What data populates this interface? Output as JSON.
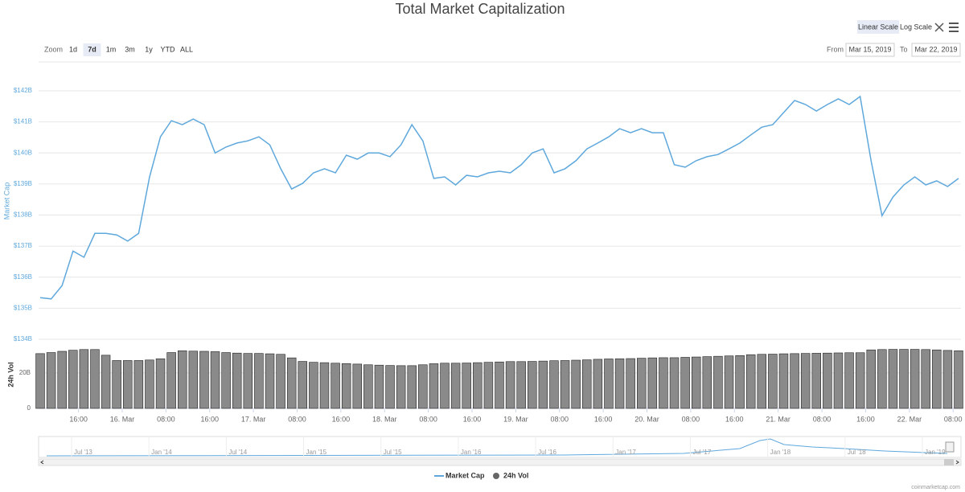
{
  "chart_data": {
    "type": "line",
    "title": "Total Market Capitalization",
    "scale_buttons": [
      "Linear Scale",
      "Log Scale"
    ],
    "zoom_label": "Zoom",
    "zoom_buttons": [
      "1d",
      "7d",
      "1m",
      "3m",
      "1y",
      "YTD",
      "ALL"
    ],
    "from_label": "From",
    "from_date": "Mar 15, 2019",
    "to_label": "To",
    "to_date": "Mar 22, 2019",
    "y_label": "Market Cap",
    "y2_label": "24h Vol",
    "credit": "coinmarketcap.com",
    "x": [
      9,
      11,
      13,
      15,
      17,
      19,
      21,
      23,
      25,
      27,
      29,
      31,
      33,
      35,
      37,
      39,
      41,
      43,
      45,
      47,
      49,
      51,
      53,
      55,
      57,
      59,
      61,
      63,
      65,
      67,
      69,
      71,
      73,
      75,
      77,
      79,
      81,
      83,
      85,
      87,
      89,
      91,
      93,
      95,
      97,
      99,
      101,
      103,
      105,
      107,
      109,
      111,
      113,
      115,
      117,
      119,
      121,
      123,
      125,
      127,
      129,
      131,
      133,
      135,
      137,
      139,
      141,
      143,
      145,
      147,
      149,
      151,
      153,
      155,
      157,
      159,
      161,
      163,
      165,
      167,
      169,
      171,
      173,
      175,
      177
    ],
    "xlim": [
      9,
      177
    ],
    "xticks": [
      {
        "value": 16,
        "label": "16:00"
      },
      {
        "value": 24,
        "label": "16. Mar"
      },
      {
        "value": 32,
        "label": "08:00"
      },
      {
        "value": 40,
        "label": "16:00"
      },
      {
        "value": 48,
        "label": "17. Mar"
      },
      {
        "value": 56,
        "label": "08:00"
      },
      {
        "value": 64,
        "label": "16:00"
      },
      {
        "value": 72,
        "label": "18. Mar"
      },
      {
        "value": 80,
        "label": "08:00"
      },
      {
        "value": 88,
        "label": "16:00"
      },
      {
        "value": 96,
        "label": "19. Mar"
      },
      {
        "value": 104,
        "label": "08:00"
      },
      {
        "value": 112,
        "label": "16:00"
      },
      {
        "value": 120,
        "label": "20. Mar"
      },
      {
        "value": 128,
        "label": "08:00"
      },
      {
        "value": 136,
        "label": "16:00"
      },
      {
        "value": 144,
        "label": "21. Mar"
      },
      {
        "value": 152,
        "label": "08:00"
      },
      {
        "value": 160,
        "label": "16:00"
      },
      {
        "value": 168,
        "label": "22. Mar"
      },
      {
        "value": 176,
        "label": "08:00"
      }
    ],
    "ylim": [
      134,
      142
    ],
    "yticks": [
      {
        "value": 134,
        "label": "$134B"
      },
      {
        "value": 135,
        "label": "$135B"
      },
      {
        "value": 136,
        "label": "$136B"
      },
      {
        "value": 137,
        "label": "$137B"
      },
      {
        "value": 138,
        "label": "$138B"
      },
      {
        "value": 139,
        "label": "$139B"
      },
      {
        "value": 140,
        "label": "$140B"
      },
      {
        "value": 141,
        "label": "$141B"
      },
      {
        "value": 142,
        "label": "$142B"
      }
    ],
    "y2lim": [
      0,
      39
    ],
    "y2ticks": [
      {
        "value": 0,
        "label": "0"
      },
      {
        "value": 20,
        "label": "20B"
      }
    ],
    "grid": true,
    "series": [
      {
        "name": "Market Cap",
        "color": "#5fa8dc",
        "values": [
          135.34,
          135.3,
          135.73,
          136.84,
          136.64,
          137.41,
          137.41,
          137.36,
          137.16,
          137.41,
          139.23,
          140.52,
          141.04,
          140.91,
          141.09,
          140.91,
          140.0,
          140.19,
          140.32,
          140.39,
          140.52,
          140.26,
          139.49,
          138.84,
          139.02,
          139.36,
          139.49,
          139.36,
          139.93,
          139.8,
          140.0,
          140.0,
          139.88,
          140.26,
          140.91,
          140.39,
          139.18,
          139.23,
          138.97,
          139.28,
          139.23,
          139.36,
          139.41,
          139.36,
          139.62,
          140.0,
          140.13,
          139.36,
          139.49,
          139.75,
          140.13,
          140.32,
          140.52,
          140.78,
          140.65,
          140.78,
          140.65,
          140.65,
          139.62,
          139.54,
          139.75,
          139.88,
          139.95,
          140.13,
          140.32,
          140.58,
          140.83,
          140.91,
          141.3,
          141.69,
          141.56,
          141.35,
          141.56,
          141.74,
          141.56,
          141.82,
          139.75,
          137.98,
          138.58,
          138.97,
          139.23,
          138.97,
          139.1,
          138.92,
          139.18
        ]
      },
      {
        "name": "24h Vol",
        "color": "#8a8a8a",
        "axis": "y2",
        "values": [
          30.9,
          31.5,
          32.2,
          32.8,
          33.2,
          33.2,
          30,
          27,
          27,
          27,
          27.3,
          28,
          31.5,
          32.5,
          32.3,
          32.2,
          32,
          31.5,
          31.2,
          31,
          31,
          30.8,
          30.5,
          28.5,
          26.5,
          26,
          25.8,
          25.5,
          25.3,
          25,
          24.6,
          24.4,
          24.2,
          24.1,
          24.1,
          24.6,
          25.2,
          25.5,
          25.5,
          25.6,
          25.8,
          26,
          26.2,
          26.4,
          26.4,
          26.5,
          26.7,
          26.9,
          27,
          27.2,
          27.4,
          27.7,
          27.9,
          28,
          28.1,
          28.3,
          28.5,
          28.6,
          28.6,
          28.8,
          29,
          29.2,
          29.4,
          29.6,
          29.8,
          30.3,
          30.5,
          30.6,
          30.8,
          30.9,
          31,
          31.1,
          31.2,
          31.3,
          31.4,
          31.4,
          33,
          33.2,
          33.3,
          33.3,
          33.3,
          33.2,
          33,
          32.7,
          32.5
        ]
      }
    ],
    "navigator_labels": [
      "Jul '13",
      "Jan '14",
      "Jul '14",
      "Jan '15",
      "Jul '15",
      "Jan '16",
      "Jul '16",
      "Jan '17",
      "Jul '17",
      "Jan '18",
      "Jul '18",
      "Jan '19"
    ]
  }
}
